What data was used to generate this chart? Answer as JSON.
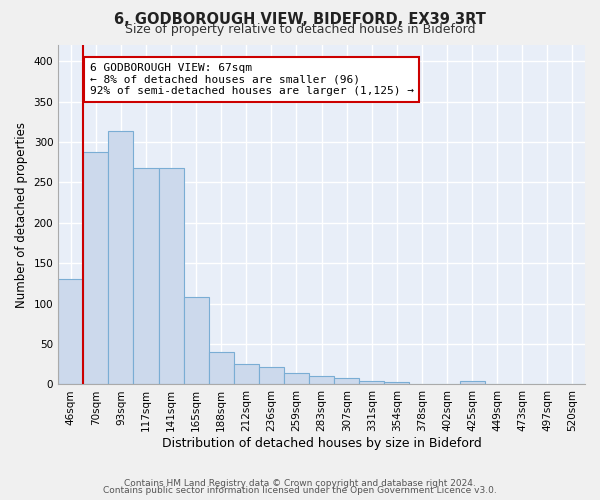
{
  "title": "6, GODBOROUGH VIEW, BIDEFORD, EX39 3RT",
  "subtitle": "Size of property relative to detached houses in Bideford",
  "xlabel": "Distribution of detached houses by size in Bideford",
  "ylabel": "Number of detached properties",
  "categories": [
    "46sqm",
    "70sqm",
    "93sqm",
    "117sqm",
    "141sqm",
    "165sqm",
    "188sqm",
    "212sqm",
    "236sqm",
    "259sqm",
    "283sqm",
    "307sqm",
    "331sqm",
    "354sqm",
    "378sqm",
    "402sqm",
    "425sqm",
    "449sqm",
    "473sqm",
    "497sqm",
    "520sqm"
  ],
  "values": [
    130,
    287,
    313,
    268,
    268,
    108,
    40,
    25,
    22,
    14,
    10,
    8,
    4,
    3,
    1,
    0,
    4,
    0,
    0,
    0,
    0
  ],
  "bar_color": "#ccd9ec",
  "bar_edge_color": "#7aadd4",
  "annotation_text": "6 GODBOROUGH VIEW: 67sqm\n← 8% of detached houses are smaller (96)\n92% of semi-detached houses are larger (1,125) →",
  "annotation_box_color": "#ffffff",
  "annotation_border_color": "#cc0000",
  "red_line_color": "#cc0000",
  "ylim": [
    0,
    420
  ],
  "yticks": [
    0,
    50,
    100,
    150,
    200,
    250,
    300,
    350,
    400
  ],
  "plot_bg_color": "#e8eef8",
  "fig_bg_color": "#f0f0f0",
  "grid_color": "#ffffff",
  "footer_line1": "Contains HM Land Registry data © Crown copyright and database right 2024.",
  "footer_line2": "Contains public sector information licensed under the Open Government Licence v3.0."
}
